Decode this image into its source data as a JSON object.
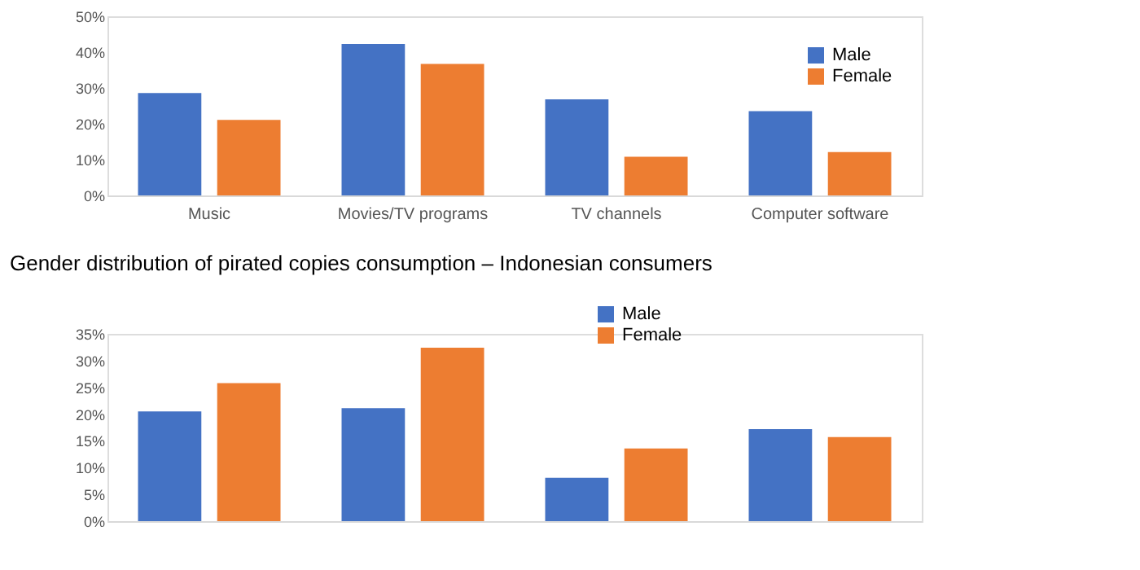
{
  "chart_data": [
    {
      "type": "bar",
      "categories": [
        "Music",
        "Movies/TV programs",
        "TV channels",
        "Computer software"
      ],
      "series": [
        {
          "name": "Male",
          "color": "#4472c4",
          "values": [
            28.6,
            42.3,
            26.8,
            23.5
          ]
        },
        {
          "name": "Female",
          "color": "#ed7d31",
          "values": [
            21.1,
            36.7,
            10.8,
            12.1
          ]
        }
      ],
      "ylim": [
        0,
        50
      ],
      "yticks": [
        {
          "value": 0,
          "label": "0%"
        },
        {
          "value": 10,
          "label": "10%"
        },
        {
          "value": 20,
          "label": "20%"
        },
        {
          "value": 30,
          "label": "30%"
        },
        {
          "value": 40,
          "label": "40%"
        },
        {
          "value": 50,
          "label": "50%"
        }
      ],
      "grid": false,
      "legend": "top right"
    },
    {
      "type": "bar",
      "title": "Gender distribution of pirated copies consumption – Indonesian consumers",
      "categories": [
        null,
        null,
        null,
        null
      ],
      "series": [
        {
          "name": "Male",
          "color": "#4472c4",
          "values": [
            20.5,
            21.1,
            8.1,
            17.2
          ]
        },
        {
          "name": "Female",
          "color": "#ed7d31",
          "values": [
            25.8,
            32.4,
            13.6,
            15.7
          ]
        }
      ],
      "ylim": [
        0,
        35
      ],
      "yticks": [
        {
          "value": 0,
          "label": "0%"
        },
        {
          "value": 5,
          "label": "5%"
        },
        {
          "value": 10,
          "label": "10%"
        },
        {
          "value": 15,
          "label": "15%"
        },
        {
          "value": 20,
          "label": "20%"
        },
        {
          "value": 25,
          "label": "25%"
        },
        {
          "value": 30,
          "label": "30%"
        },
        {
          "value": 35,
          "label": "35%"
        }
      ],
      "grid": false,
      "legend": "top"
    }
  ]
}
